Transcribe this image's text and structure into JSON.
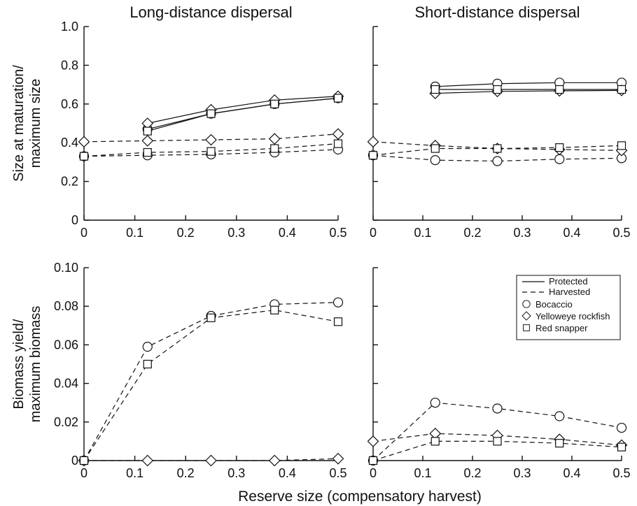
{
  "chart_data": [
    {
      "type": "line",
      "panel": "top-left",
      "title": "Long-distance dispersal",
      "ylabel": [
        "Size at maturation/",
        "maximum size"
      ],
      "xlabel": "",
      "xlim": [
        0,
        0.5
      ],
      "ylim": [
        0,
        1.0
      ],
      "xticks": [
        "0",
        "0.1",
        "0.2",
        "0.3",
        "0.4",
        "0.5"
      ],
      "yticks": [
        "0",
        "0.2",
        "0.4",
        "0.6",
        "0.8",
        "1.0"
      ],
      "series": [
        {
          "group": "Protected",
          "species": "Bocaccio",
          "marker": "circle",
          "x": [
            0.125,
            0.25,
            0.375,
            0.5
          ],
          "y": [
            0.47,
            0.55,
            0.6,
            0.63
          ]
        },
        {
          "group": "Protected",
          "species": "Yelloweye rockfish",
          "marker": "diamond",
          "x": [
            0.125,
            0.25,
            0.375,
            0.5
          ],
          "y": [
            0.5,
            0.57,
            0.62,
            0.64
          ]
        },
        {
          "group": "Protected",
          "species": "Red snapper",
          "marker": "square",
          "x": [
            0.125,
            0.25,
            0.375,
            0.5
          ],
          "y": [
            0.46,
            0.55,
            0.6,
            0.63
          ]
        },
        {
          "group": "Harvested",
          "species": "Bocaccio",
          "marker": "circle",
          "x": [
            0,
            0.125,
            0.25,
            0.375,
            0.5
          ],
          "y": [
            0.33,
            0.335,
            0.34,
            0.35,
            0.365
          ]
        },
        {
          "group": "Harvested",
          "species": "Yelloweye rockfish",
          "marker": "diamond",
          "x": [
            0,
            0.125,
            0.25,
            0.375,
            0.5
          ],
          "y": [
            0.405,
            0.41,
            0.415,
            0.42,
            0.445
          ]
        },
        {
          "group": "Harvested",
          "species": "Red snapper",
          "marker": "square",
          "x": [
            0,
            0.125,
            0.25,
            0.375,
            0.5
          ],
          "y": [
            0.33,
            0.35,
            0.355,
            0.37,
            0.395
          ]
        }
      ]
    },
    {
      "type": "line",
      "panel": "top-right",
      "title": "Short-distance dispersal",
      "ylabel": [],
      "xlabel": "",
      "xlim": [
        0,
        0.5
      ],
      "ylim": [
        0,
        1.0
      ],
      "xticks": [
        "0",
        "0.1",
        "0.2",
        "0.3",
        "0.4",
        "0.5"
      ],
      "yticks": [],
      "series": [
        {
          "group": "Protected",
          "species": "Bocaccio",
          "marker": "circle",
          "x": [
            0.125,
            0.25,
            0.375,
            0.5
          ],
          "y": [
            0.69,
            0.705,
            0.71,
            0.71
          ]
        },
        {
          "group": "Protected",
          "species": "Yelloweye rockfish",
          "marker": "diamond",
          "x": [
            0.125,
            0.25,
            0.375,
            0.5
          ],
          "y": [
            0.655,
            0.665,
            0.668,
            0.67
          ]
        },
        {
          "group": "Protected",
          "species": "Red snapper",
          "marker": "square",
          "x": [
            0.125,
            0.25,
            0.375,
            0.5
          ],
          "y": [
            0.675,
            0.675,
            0.675,
            0.675
          ]
        },
        {
          "group": "Harvested",
          "species": "Bocaccio",
          "marker": "circle",
          "x": [
            0,
            0.125,
            0.25,
            0.375,
            0.5
          ],
          "y": [
            0.335,
            0.31,
            0.305,
            0.315,
            0.32
          ]
        },
        {
          "group": "Harvested",
          "species": "Yelloweye rockfish",
          "marker": "diamond",
          "x": [
            0,
            0.125,
            0.25,
            0.375,
            0.5
          ],
          "y": [
            0.405,
            0.385,
            0.37,
            0.365,
            0.36
          ]
        },
        {
          "group": "Harvested",
          "species": "Red snapper",
          "marker": "square",
          "x": [
            0,
            0.125,
            0.25,
            0.375,
            0.5
          ],
          "y": [
            0.335,
            0.37,
            0.37,
            0.375,
            0.385
          ]
        }
      ]
    },
    {
      "type": "line",
      "panel": "bottom-left",
      "title": "",
      "ylabel": [
        "Biomass yield/",
        "maximum biomass"
      ],
      "xlabel": "",
      "xlim": [
        0,
        0.5
      ],
      "ylim": [
        0,
        0.1
      ],
      "xticks": [
        "0",
        "0.1",
        "0.2",
        "0.3",
        "0.4",
        "0.5"
      ],
      "yticks": [
        "0",
        "0.02",
        "0.04",
        "0.06",
        "0.08",
        "0.10"
      ],
      "series": [
        {
          "group": "Harvested",
          "species": "Bocaccio",
          "marker": "circle",
          "x": [
            0,
            0.125,
            0.25,
            0.375,
            0.5
          ],
          "y": [
            0.0,
            0.059,
            0.075,
            0.081,
            0.082
          ]
        },
        {
          "group": "Harvested",
          "species": "Yelloweye rockfish",
          "marker": "diamond",
          "x": [
            0,
            0.125,
            0.25,
            0.375,
            0.5
          ],
          "y": [
            0.0,
            0.0,
            0.0,
            0.0,
            0.001
          ]
        },
        {
          "group": "Harvested",
          "species": "Red snapper",
          "marker": "square",
          "x": [
            0,
            0.125,
            0.25,
            0.375,
            0.5
          ],
          "y": [
            0.0,
            0.05,
            0.074,
            0.078,
            0.072
          ]
        }
      ]
    },
    {
      "type": "line",
      "panel": "bottom-right",
      "title": "",
      "ylabel": [],
      "xlabel": "",
      "xlim": [
        0,
        0.5
      ],
      "ylim": [
        0,
        0.1
      ],
      "xticks": [
        "0",
        "0.1",
        "0.2",
        "0.3",
        "0.4",
        "0.5"
      ],
      "yticks": [],
      "series": [
        {
          "group": "Harvested",
          "species": "Bocaccio",
          "marker": "circle",
          "x": [
            0,
            0.125,
            0.25,
            0.375,
            0.5
          ],
          "y": [
            0.0,
            0.03,
            0.027,
            0.023,
            0.017
          ]
        },
        {
          "group": "Harvested",
          "species": "Yelloweye rockfish",
          "marker": "diamond",
          "x": [
            0,
            0.125,
            0.25,
            0.375,
            0.5
          ],
          "y": [
            0.01,
            0.014,
            0.013,
            0.011,
            0.008
          ]
        },
        {
          "group": "Harvested",
          "species": "Red snapper",
          "marker": "square",
          "x": [
            0,
            0.125,
            0.25,
            0.375,
            0.5
          ],
          "y": [
            0.0,
            0.01,
            0.01,
            0.009,
            0.007
          ]
        }
      ]
    }
  ],
  "xlabel": "Reserve size (compensatory harvest)",
  "legend": {
    "placement": "bottom-right panel, top-right",
    "lines": [
      {
        "label": "Protected",
        "style": "solid"
      },
      {
        "label": "Harvested",
        "style": "dashed"
      }
    ],
    "markers": [
      {
        "label": "Bocaccio",
        "marker": "circle"
      },
      {
        "label": "Yelloweye rockfish",
        "marker": "diamond"
      },
      {
        "label": "Red snapper",
        "marker": "square"
      }
    ]
  }
}
